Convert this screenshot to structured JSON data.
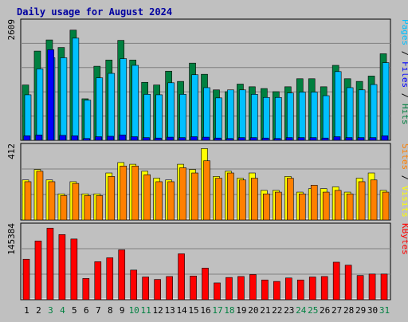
{
  "chart_data": {
    "type": "bar",
    "title": "Daily usage for August 2024",
    "categories": [
      "1",
      "2",
      "3",
      "4",
      "5",
      "6",
      "7",
      "8",
      "9",
      "10",
      "11",
      "12",
      "13",
      "14",
      "15",
      "16",
      "17",
      "18",
      "19",
      "20",
      "21",
      "22",
      "23",
      "24",
      "25",
      "26",
      "27",
      "28",
      "29",
      "30",
      "31"
    ],
    "weekend_days": [
      "3",
      "4",
      "10",
      "11",
      "17",
      "18",
      "24",
      "25",
      "31"
    ],
    "colors": {
      "background": "#c0c0c0",
      "panel": "#c0c0c0",
      "title": "#0000a0",
      "hits": "#008040",
      "files": "#00c0ff",
      "pages": "#0000ff",
      "visits": "#ffff00",
      "sites": "#ff8000",
      "kbytes": "#ff0000",
      "weekend_label": "#008040",
      "weekday_label": "#000000"
    },
    "panels": [
      {
        "max_label": "2609",
        "ymax": 2609,
        "legend": [
          {
            "text": "Pages",
            "color": "#00c0ff"
          },
          {
            "text": " / ",
            "color": "#000000"
          },
          {
            "text": "Files",
            "color": "#0000ff"
          },
          {
            "text": " / ",
            "color": "#000000"
          },
          {
            "text": "Hits",
            "color": "#008040"
          }
        ],
        "series": [
          {
            "name": "Hits",
            "color": "#008040",
            "values": [
              1240,
              2000,
              2250,
              2080,
              2470,
              930,
              1660,
              1800,
              2240,
              1800,
              1300,
              1240,
              1550,
              1320,
              1730,
              1480,
              1130,
              1090,
              1260,
              1200,
              1160,
              1090,
              1200,
              1380,
              1380,
              1200,
              1680,
              1380,
              1320,
              1440,
              1940
            ]
          },
          {
            "name": "Files",
            "color": "#00c0ff",
            "values": [
              1020,
              1600,
              1850,
              1850,
              2290,
              900,
              1400,
              1500,
              1830,
              1680,
              1030,
              1020,
              1290,
              1030,
              1470,
              1180,
              950,
              1130,
              1130,
              1030,
              960,
              960,
              1060,
              1080,
              1080,
              1000,
              1540,
              1180,
              1130,
              1250,
              1740
            ]
          },
          {
            "name": "Pages",
            "color": "#0000ff",
            "values": [
              100,
              120,
              2030,
              110,
              100,
              40,
              80,
              90,
              120,
              80,
              60,
              50,
              70,
              60,
              80,
              70,
              50,
              40,
              60,
              60,
              50,
              40,
              60,
              60,
              60,
              50,
              80,
              60,
              60,
              60,
              100
            ]
          }
        ]
      },
      {
        "max_label": "412",
        "ymax": 412,
        "legend": [
          {
            "text": "Sites",
            "color": "#ff8000"
          },
          {
            "text": " / ",
            "color": "#000000"
          },
          {
            "text": "Visits",
            "color": "#ffff00"
          }
        ],
        "series": [
          {
            "name": "Visits",
            "color": "#ffff00",
            "values": [
              230,
              290,
              230,
              150,
              220,
              150,
              150,
              270,
              330,
              320,
              280,
              240,
              230,
              320,
              290,
              410,
              250,
              280,
              240,
              270,
              170,
              170,
              250,
              160,
              180,
              180,
              190,
              160,
              240,
              270,
              170
            ]
          },
          {
            "name": "Sites",
            "color": "#ff8000",
            "values": [
              220,
              280,
              220,
              140,
              210,
              140,
              140,
              250,
              310,
              310,
              260,
              220,
              220,
              300,
              270,
              340,
              240,
              270,
              230,
              240,
              150,
              160,
              240,
              150,
              200,
              160,
              170,
              150,
              220,
              230,
              160
            ]
          }
        ]
      },
      {
        "max_label": "145384",
        "ymax": 145384,
        "legend": [
          {
            "text": "KBytes",
            "color": "#ff0000"
          }
        ],
        "series": [
          {
            "name": "KBytes",
            "color": "#ff0000",
            "values": [
              82000,
              119000,
              145000,
              132000,
              123000,
              43000,
              77000,
              85000,
              101000,
              60000,
              46000,
              41000,
              47000,
              93000,
              48000,
              64000,
              34000,
              45000,
              47000,
              51000,
              40000,
              37000,
              44000,
              40000,
              46000,
              47000,
              76000,
              70000,
              49000,
              52000,
              52000
            ]
          }
        ]
      }
    ],
    "xlabel": "",
    "ylabel": ""
  }
}
